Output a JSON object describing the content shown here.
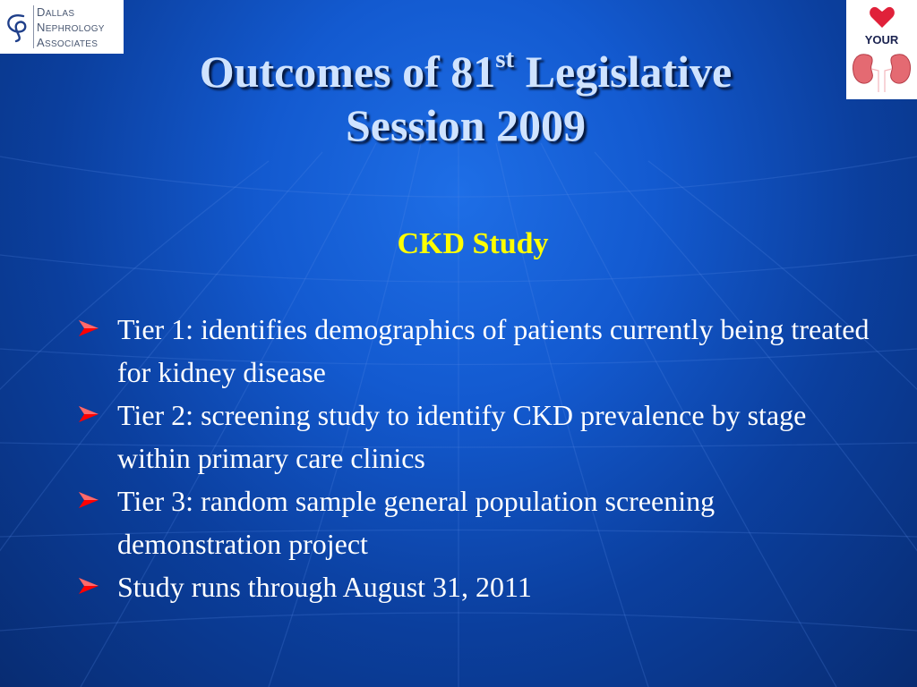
{
  "logo_left": {
    "lines": [
      {
        "cap": "D",
        "rest": "ALLAS"
      },
      {
        "cap": "N",
        "rest": "EPHROLOGY"
      },
      {
        "cap": "A",
        "rest": "SSOCIATES"
      }
    ],
    "color": "#4a5872"
  },
  "logo_right": {
    "text": "YOUR",
    "heart_color": "#e0213a",
    "kidney_color": "#e46a72"
  },
  "title": {
    "line1_before": "Outcomes of 81",
    "line1_sup": "st",
    "line1_after": " Legislative",
    "line2": "Session 2009"
  },
  "subtitle": "CKD Study",
  "bullets": [
    "Tier 1: identifies demographics of patients currently being treated for kidney disease",
    "Tier 2:  screening study to identify CKD prevalence by stage within primary care clinics",
    "Tier 3:  random sample general population screening demonstration project",
    "Study runs through August 31, 2011"
  ],
  "colors": {
    "background": "#135ad0",
    "title": "#cfe3ff",
    "subtitle": "#ffff00",
    "bullet_text": "#ffffff",
    "bullet_arrow": "#ff0000"
  },
  "icons": {
    "bullet": "arrow-bullet-icon",
    "left_logo_mark": "dna-logo-icon",
    "right_logo": "heart-kidney-icon"
  }
}
